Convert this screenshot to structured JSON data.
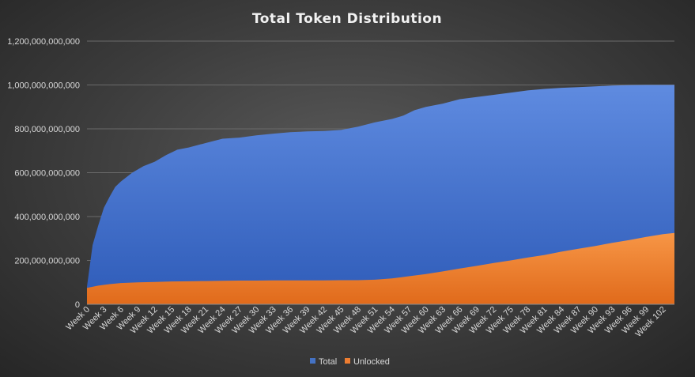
{
  "chart_data": {
    "type": "area",
    "title": "Total Token Distribution",
    "xlabel": "",
    "ylabel": "",
    "ylim": [
      0,
      1200000000000
    ],
    "yticks": [
      {
        "value": 0,
        "label": "0"
      },
      {
        "value": 200000000000,
        "label": "200,000,000,000"
      },
      {
        "value": 400000000000,
        "label": "400,000,000,000"
      },
      {
        "value": 600000000000,
        "label": "600,000,000,000"
      },
      {
        "value": 800000000000,
        "label": "800,000,000,000"
      },
      {
        "value": 1000000000000,
        "label": "1,000,000,000,000"
      },
      {
        "value": 1200000000000,
        "label": "1,200,000,000,000"
      }
    ],
    "x_tick_labels": [
      "Week 0",
      "Week 3",
      "Week 6",
      "Week 9",
      "Week 12",
      "Week 15",
      "Week 18",
      "Week 21",
      "Week 24",
      "Week 27",
      "Week 30",
      "Week 33",
      "Week 36",
      "Week 39",
      "Week 42",
      "Week 45",
      "Week 48",
      "Week 51",
      "Week 54",
      "Week 57",
      "Week 60",
      "Week 63",
      "Week 66",
      "Week 69",
      "Week 72",
      "Week 75",
      "Week 78",
      "Week 81",
      "Week 84",
      "Week 87",
      "Week 90",
      "Week 93",
      "Week 96",
      "Week 99",
      "Week 102"
    ],
    "x_first_week": 0,
    "x_last_week": 104,
    "grid": true,
    "legend_position": "bottom",
    "series": [
      {
        "name": "Total",
        "color": "#4472c4",
        "points": [
          [
            0,
            80000000000
          ],
          [
            1,
            270000000000
          ],
          [
            2,
            360000000000
          ],
          [
            3,
            440000000000
          ],
          [
            4,
            490000000000
          ],
          [
            5,
            535000000000
          ],
          [
            6,
            560000000000
          ],
          [
            8,
            600000000000
          ],
          [
            10,
            630000000000
          ],
          [
            12,
            650000000000
          ],
          [
            14,
            680000000000
          ],
          [
            16,
            705000000000
          ],
          [
            18,
            715000000000
          ],
          [
            21,
            735000000000
          ],
          [
            24,
            755000000000
          ],
          [
            27,
            760000000000
          ],
          [
            30,
            770000000000
          ],
          [
            33,
            778000000000
          ],
          [
            36,
            785000000000
          ],
          [
            39,
            788000000000
          ],
          [
            42,
            790000000000
          ],
          [
            45,
            795000000000
          ],
          [
            48,
            810000000000
          ],
          [
            51,
            830000000000
          ],
          [
            54,
            845000000000
          ],
          [
            56,
            860000000000
          ],
          [
            58,
            885000000000
          ],
          [
            60,
            900000000000
          ],
          [
            63,
            915000000000
          ],
          [
            66,
            935000000000
          ],
          [
            69,
            945000000000
          ],
          [
            72,
            955000000000
          ],
          [
            75,
            965000000000
          ],
          [
            78,
            975000000000
          ],
          [
            81,
            982000000000
          ],
          [
            84,
            987000000000
          ],
          [
            87,
            990000000000
          ],
          [
            90,
            994000000000
          ],
          [
            93,
            997000000000
          ],
          [
            96,
            999000000000
          ],
          [
            99,
            1000000000000
          ],
          [
            102,
            1000000000000
          ],
          [
            104,
            1000000000000
          ]
        ]
      },
      {
        "name": "Unlocked",
        "color": "#ed7d31",
        "points": [
          [
            0,
            75000000000
          ],
          [
            2,
            85000000000
          ],
          [
            4,
            92000000000
          ],
          [
            6,
            97000000000
          ],
          [
            9,
            100000000000
          ],
          [
            12,
            102000000000
          ],
          [
            15,
            104000000000
          ],
          [
            18,
            105000000000
          ],
          [
            21,
            106000000000
          ],
          [
            24,
            107000000000
          ],
          [
            27,
            108000000000
          ],
          [
            30,
            108000000000
          ],
          [
            33,
            109000000000
          ],
          [
            36,
            109000000000
          ],
          [
            39,
            109000000000
          ],
          [
            42,
            109000000000
          ],
          [
            45,
            110000000000
          ],
          [
            48,
            110000000000
          ],
          [
            51,
            112000000000
          ],
          [
            54,
            118000000000
          ],
          [
            57,
            128000000000
          ],
          [
            60,
            138000000000
          ],
          [
            63,
            150000000000
          ],
          [
            66,
            163000000000
          ],
          [
            69,
            175000000000
          ],
          [
            72,
            188000000000
          ],
          [
            75,
            200000000000
          ],
          [
            78,
            213000000000
          ],
          [
            81,
            225000000000
          ],
          [
            84,
            240000000000
          ],
          [
            87,
            253000000000
          ],
          [
            90,
            266000000000
          ],
          [
            93,
            280000000000
          ],
          [
            96,
            293000000000
          ],
          [
            99,
            307000000000
          ],
          [
            102,
            320000000000
          ],
          [
            104,
            325000000000
          ]
        ]
      }
    ]
  }
}
